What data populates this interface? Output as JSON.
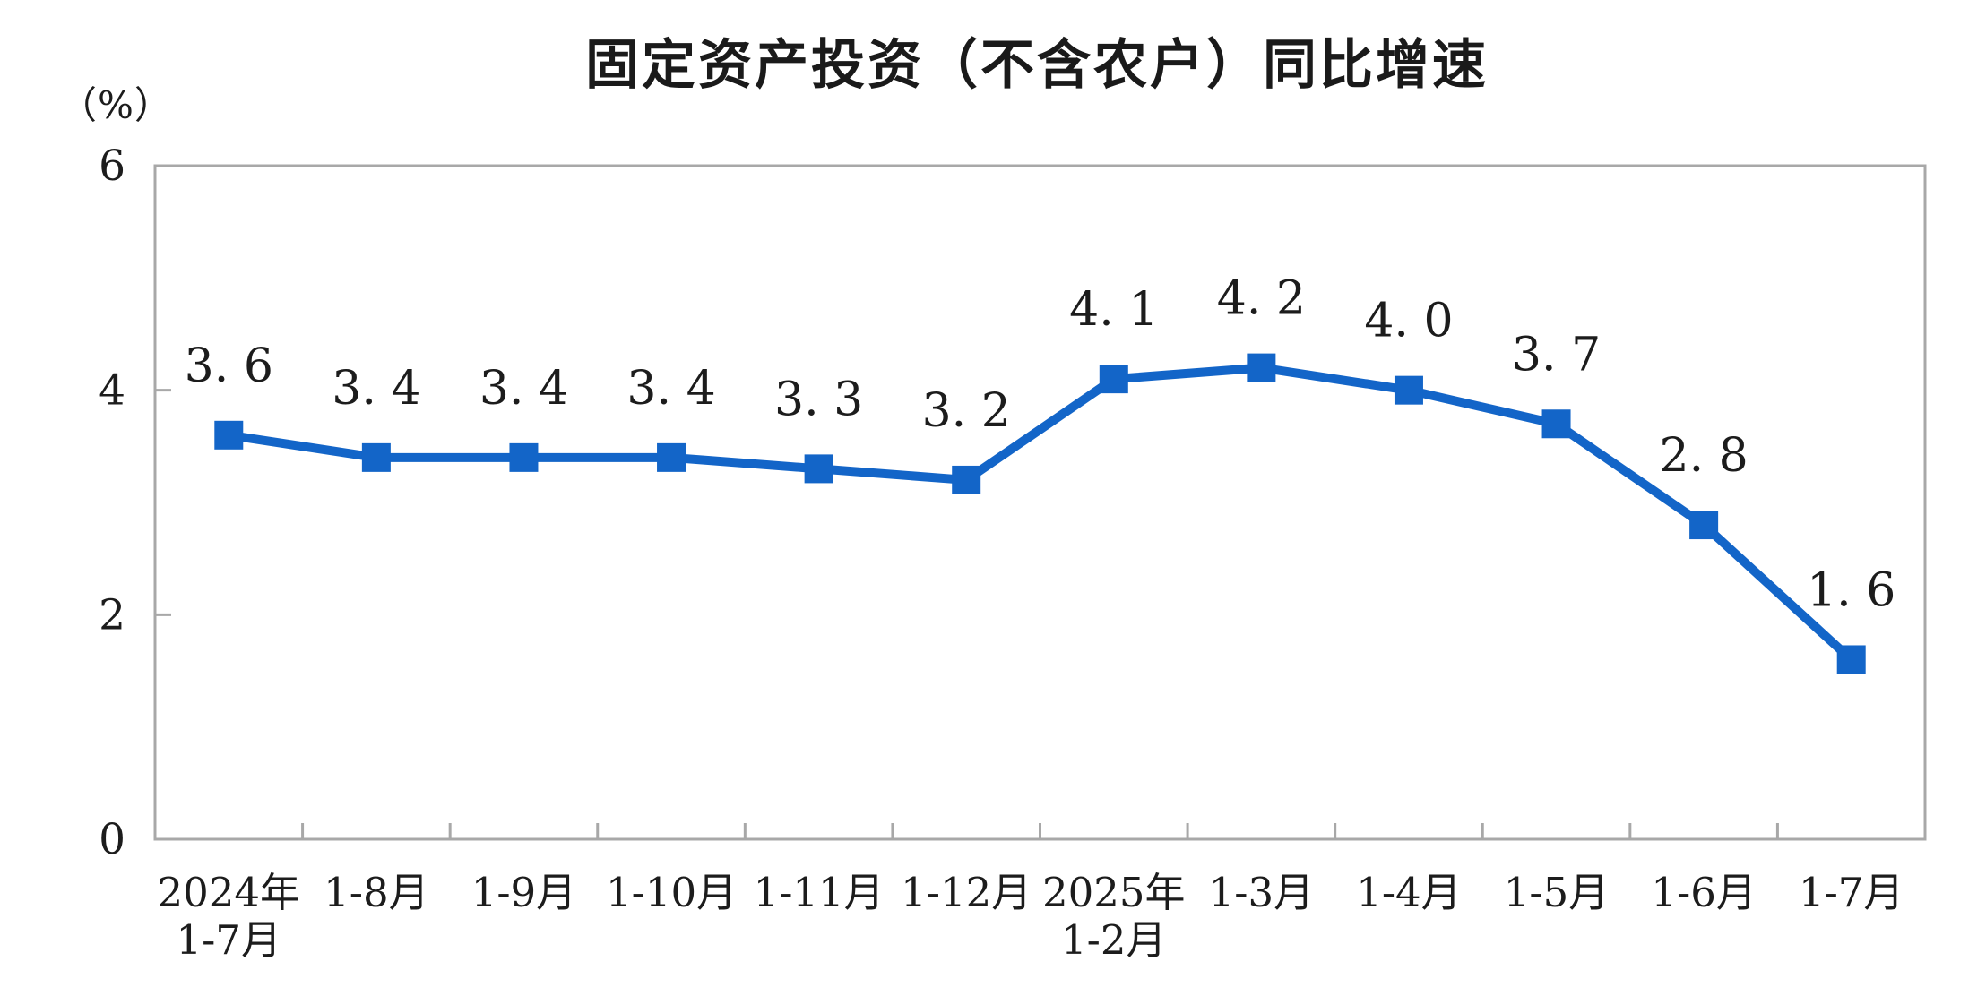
{
  "page": {
    "background": "#ffffff"
  },
  "chart": {
    "title": "固定资产投资（不含农户）同比增速",
    "unit_label": "（%）"
  },
  "chart_data": {
    "type": "line",
    "title": "固定资产投资（不含农户）同比增速",
    "unit": "（%）",
    "categories": [
      "2024年\n1-7月",
      "1-8月",
      "1-9月",
      "1-10月",
      "1-11月",
      "1-12月",
      "2025年\n1-2月",
      "1-3月",
      "1-4月",
      "1-5月",
      "1-6月",
      "1-7月"
    ],
    "values": [
      3.6,
      3.4,
      3.4,
      3.4,
      3.3,
      3.2,
      4.1,
      4.2,
      4.0,
      3.7,
      2.8,
      1.6
    ],
    "data_labels": [
      "3. 6",
      "3. 4",
      "3. 4",
      "3. 4",
      "3. 3",
      "3. 2",
      "4. 1",
      "4. 2",
      "4. 0",
      "3. 7",
      "2. 8",
      "1. 6"
    ],
    "y_tick_labels": [
      "0",
      "2",
      "4",
      "6"
    ],
    "yticks": [
      0,
      2,
      4,
      6
    ],
    "ylim": [
      0,
      6
    ],
    "xlabel": "",
    "ylabel": "（%）",
    "grid": false,
    "legend": "none",
    "marker": "square",
    "line_color": "#1365c8",
    "axis_color": "#a8a8a8",
    "text_color": "#1c1c1c"
  }
}
